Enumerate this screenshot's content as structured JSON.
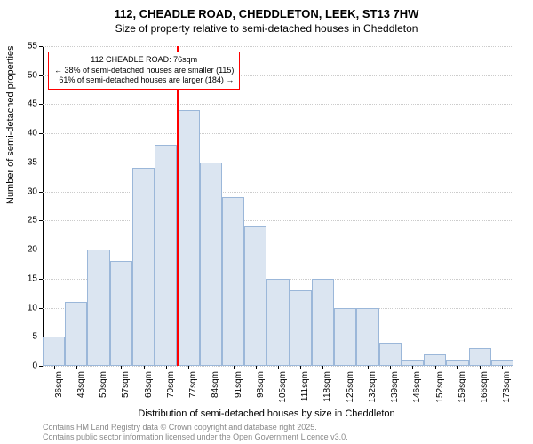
{
  "title": "112, CHEADLE ROAD, CHEDDLETON, LEEK, ST13 7HW",
  "subtitle": "Size of property relative to semi-detached houses in Cheddleton",
  "y_axis_label": "Number of semi-detached properties",
  "x_axis_label": "Distribution of semi-detached houses by size in Cheddleton",
  "copyright_line1": "Contains HM Land Registry data © Crown copyright and database right 2025.",
  "copyright_line2": "Contains public sector information licensed under the Open Government Licence v3.0.",
  "chart": {
    "type": "histogram",
    "ylim": [
      0,
      55
    ],
    "ytick_step": 5,
    "y_ticks": [
      0,
      5,
      10,
      15,
      20,
      25,
      30,
      35,
      40,
      45,
      50,
      55
    ],
    "x_categories": [
      "36sqm",
      "43sqm",
      "50sqm",
      "57sqm",
      "63sqm",
      "70sqm",
      "77sqm",
      "84sqm",
      "91sqm",
      "98sqm",
      "105sqm",
      "111sqm",
      "118sqm",
      "125sqm",
      "132sqm",
      "139sqm",
      "146sqm",
      "152sqm",
      "159sqm",
      "166sqm",
      "173sqm"
    ],
    "values": [
      5,
      11,
      20,
      18,
      34,
      38,
      44,
      35,
      29,
      24,
      15,
      13,
      15,
      10,
      10,
      4,
      1,
      2,
      1,
      3,
      1
    ],
    "bar_fill": "#dbe5f1",
    "bar_stroke": "#9bb7d9",
    "grid_color": "#cccccc",
    "background": "#ffffff",
    "marker_index": 6,
    "marker_color": "#ff0000",
    "annotation_border": "#ff0000",
    "annotation_line1": "112 CHEADLE ROAD: 76sqm",
    "annotation_line2": "← 38% of semi-detached houses are smaller (115)",
    "annotation_line3": "61% of semi-detached houses are larger (184) →"
  }
}
